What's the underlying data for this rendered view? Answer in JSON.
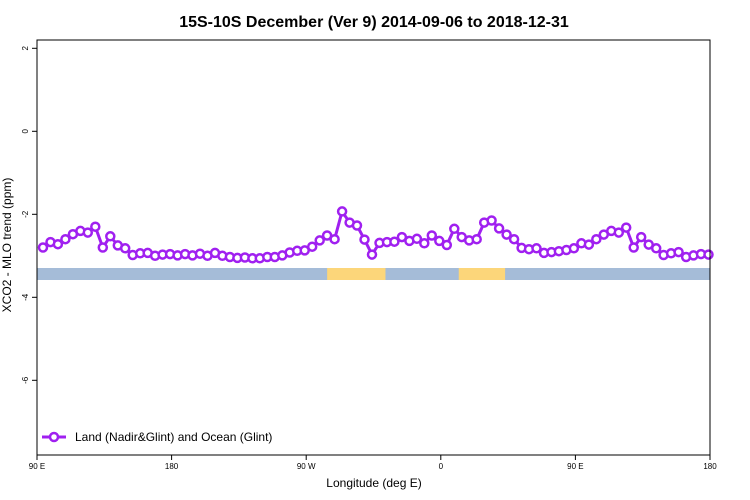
{
  "chart_data": {
    "type": "line",
    "title": "15S-10S December (Ver 9)   2014-09-06 to 2018-12-31",
    "xlabel": "Longitude (deg E)",
    "ylabel": "XCO2 - MLO trend (ppm)",
    "xlim": [
      90,
      540
    ],
    "ylim": [
      -7.8,
      2.2
    ],
    "x_ticks": [
      {
        "value": 90,
        "label": "90 E"
      },
      {
        "value": 180,
        "label": "180"
      },
      {
        "value": 270,
        "label": "90 W"
      },
      {
        "value": 360,
        "label": "0"
      },
      {
        "value": 450,
        "label": "90 E"
      },
      {
        "value": 540,
        "label": "180"
      }
    ],
    "y_ticks": [
      {
        "value": 2,
        "label": "2"
      },
      {
        "value": 0,
        "label": "0"
      },
      {
        "value": -2,
        "label": "-2"
      },
      {
        "value": -4,
        "label": "-4"
      },
      {
        "value": -6,
        "label": "-6"
      }
    ],
    "line_color": "#a020f0",
    "legend": {
      "position": "bottom-left",
      "label": "Land (Nadir&Glint) and Ocean (Glint)"
    },
    "surface_strip": {
      "ocean_color": "#a5bcd8",
      "land_color": "#fcd67a",
      "land_segments": [
        [
          284,
          323
        ],
        [
          372,
          403
        ]
      ]
    },
    "series": [
      {
        "name": "Land (Nadir&Glint) and Ocean (Glint)",
        "x": [
          94,
          99,
          104,
          109,
          114,
          119,
          124,
          129,
          134,
          139,
          144,
          149,
          154,
          159,
          164,
          169,
          174,
          179,
          184,
          189,
          194,
          199,
          204,
          209,
          214,
          219,
          224,
          229,
          234,
          239,
          244,
          249,
          254,
          259,
          264,
          269,
          274,
          279,
          284,
          289,
          294,
          299,
          304,
          309,
          314,
          319,
          324,
          329,
          334,
          339,
          344,
          349,
          354,
          359,
          364,
          369,
          374,
          379,
          384,
          389,
          394,
          399,
          404,
          409,
          414,
          419,
          424,
          429,
          434,
          439,
          444,
          449,
          454,
          459,
          464,
          469,
          474,
          479,
          484,
          489,
          494,
          499,
          504,
          509,
          514,
          519,
          524,
          529,
          534,
          539
        ],
        "values": [
          -2.8,
          -2.67,
          -2.72,
          -2.6,
          -2.48,
          -2.4,
          -2.44,
          -2.3,
          -2.8,
          -2.53,
          -2.75,
          -2.82,
          -2.98,
          -2.94,
          -2.93,
          -3.0,
          -2.97,
          -2.96,
          -2.99,
          -2.96,
          -2.99,
          -2.95,
          -3.0,
          -2.93,
          -3.0,
          -3.03,
          -3.05,
          -3.04,
          -3.06,
          -3.06,
          -3.03,
          -3.03,
          -2.99,
          -2.92,
          -2.88,
          -2.87,
          -2.78,
          -2.63,
          -2.51,
          -2.6,
          -1.93,
          -2.2,
          -2.27,
          -2.61,
          -2.97,
          -2.69,
          -2.67,
          -2.66,
          -2.55,
          -2.64,
          -2.59,
          -2.7,
          -2.51,
          -2.64,
          -2.74,
          -2.35,
          -2.55,
          -2.63,
          -2.6,
          -2.2,
          -2.15,
          -2.34,
          -2.49,
          -2.6,
          -2.81,
          -2.84,
          -2.82,
          -2.93,
          -2.91,
          -2.89,
          -2.86,
          -2.82,
          -2.7,
          -2.73,
          -2.6,
          -2.49,
          -2.4,
          -2.44,
          -2.32,
          -2.8,
          -2.55,
          -2.73,
          -2.82,
          -2.98,
          -2.94,
          -2.91,
          -3.03,
          -2.99,
          -2.96,
          -2.97
        ]
      }
    ]
  }
}
